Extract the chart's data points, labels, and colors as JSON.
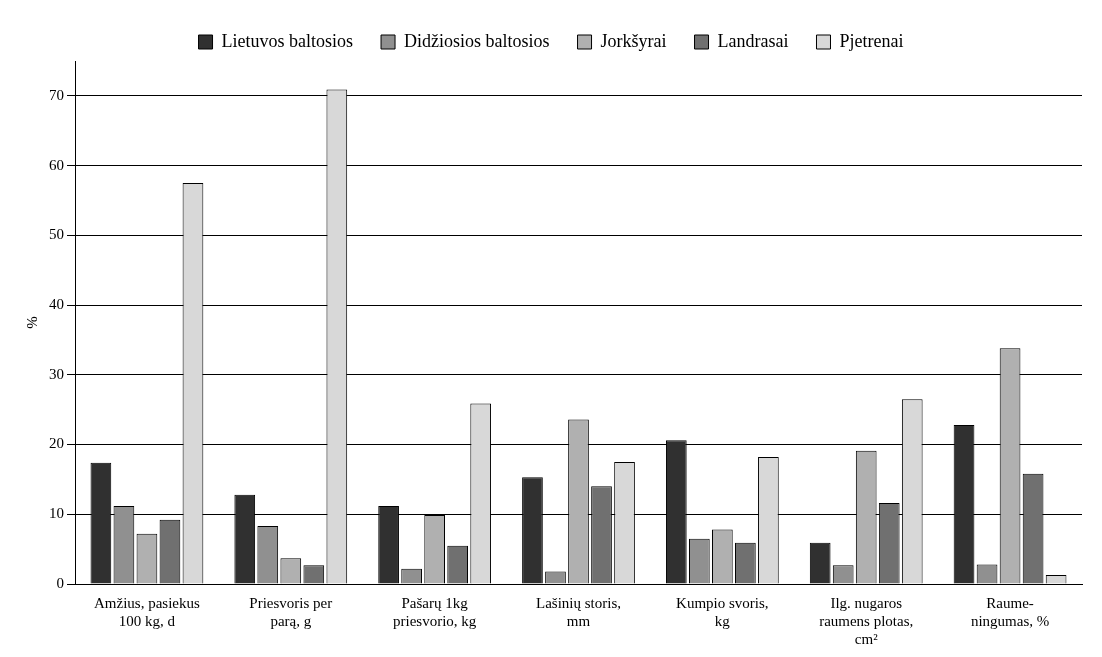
{
  "chart_data": {
    "type": "bar",
    "ylabel": "%",
    "categories": [
      "Amžius, pasiekus 100 kg, d",
      "Priesvoris per parą, g",
      "Pašarų 1kg priesvorio, kg",
      "Lašinių storis, mm",
      "Kumpio svoris, kg",
      "Ilg. nugaros raumens plotas, cm²",
      "Raume- ningumas, %"
    ],
    "series": [
      {
        "name": "Lietuvos baltosios",
        "color": "#303030",
        "values": [
          17.4,
          12.8,
          11.2,
          15.3,
          20.6,
          5.9,
          22.8
        ]
      },
      {
        "name": "Didžiosios baltosios",
        "color": "#909090",
        "values": [
          11.2,
          8.3,
          2.2,
          1.8,
          6.5,
          2.7,
          2.8
        ]
      },
      {
        "name": "Jorkšyrai",
        "color": "#b0b0b0",
        "values": [
          7.2,
          3.7,
          9.9,
          23.6,
          7.8,
          19.1,
          33.8
        ]
      },
      {
        "name": "Landrasai",
        "color": "#707070",
        "values": [
          9.2,
          2.7,
          5.5,
          14.0,
          5.9,
          11.6,
          15.8
        ]
      },
      {
        "name": "Pjetrenai",
        "color": "#d8d8d8",
        "values": [
          57.5,
          70.9,
          25.9,
          17.5,
          18.2,
          26.5,
          1.3
        ]
      }
    ],
    "ylim": [
      0,
      75
    ],
    "yticks": [
      0,
      10,
      20,
      30,
      40,
      50,
      60,
      70
    ],
    "grid": "y",
    "legend": "top"
  }
}
